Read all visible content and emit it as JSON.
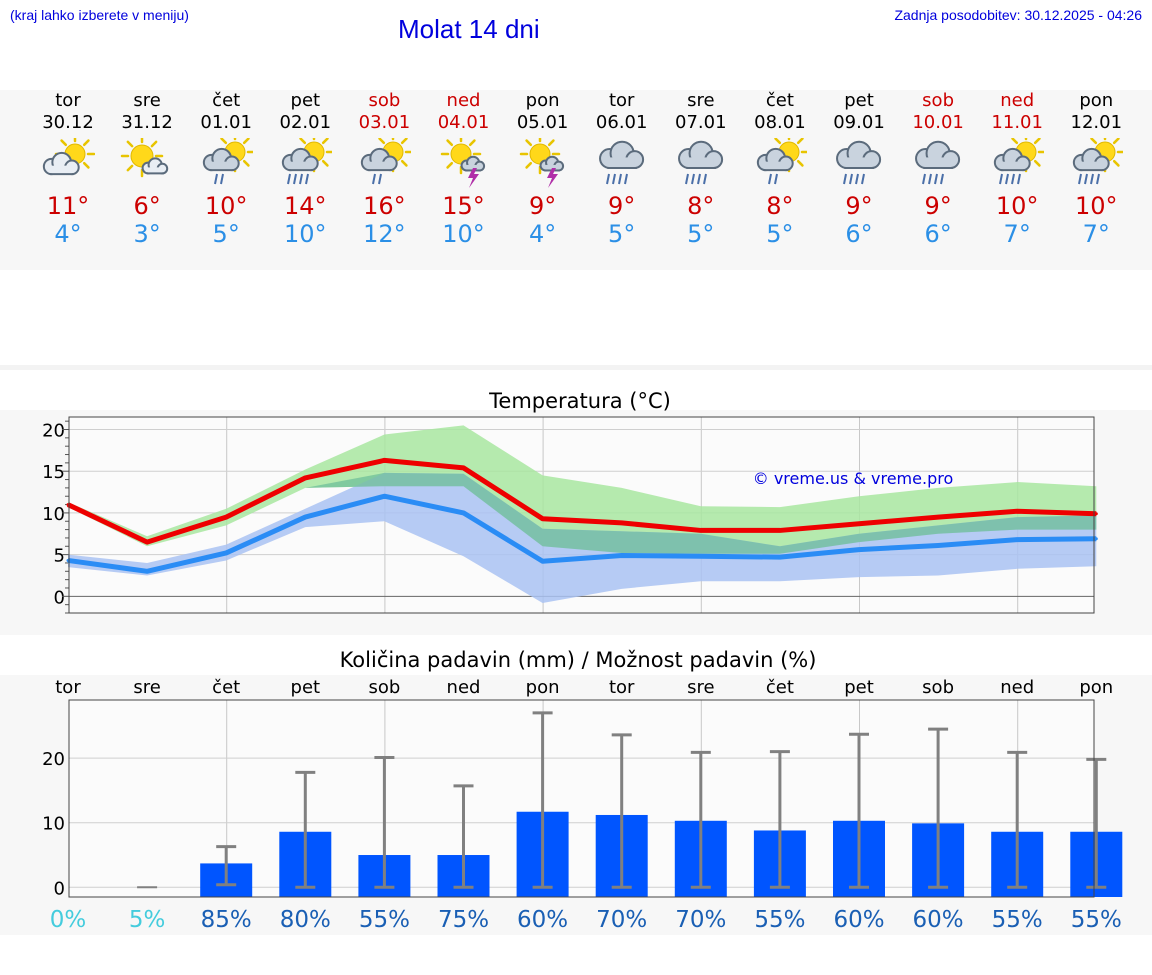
{
  "header": {
    "hint": "(kraj lahko izberete v meniju)",
    "title": "Molat 14 dni",
    "updated": "Zadnja posodobitev: 30.12.2025 - 04:26"
  },
  "days": [
    {
      "name": "tor",
      "date": "30.12",
      "weekend": false,
      "icon": "partly-cloudy-icon",
      "max": "11°",
      "min": "4°"
    },
    {
      "name": "sre",
      "date": "31.12",
      "weekend": false,
      "icon": "mostly-sunny-icon",
      "max": "6°",
      "min": "3°"
    },
    {
      "name": "čet",
      "date": "01.01",
      "weekend": false,
      "icon": "sun-cloud-rain-icon",
      "max": "10°",
      "min": "5°"
    },
    {
      "name": "pet",
      "date": "02.01",
      "weekend": false,
      "icon": "sun-cloud-heavy-rain-icon",
      "max": "14°",
      "min": "10°"
    },
    {
      "name": "sob",
      "date": "03.01",
      "weekend": true,
      "icon": "sun-cloud-rain-icon",
      "max": "16°",
      "min": "12°"
    },
    {
      "name": "ned",
      "date": "04.01",
      "weekend": true,
      "icon": "sun-thunder-icon",
      "max": "15°",
      "min": "10°"
    },
    {
      "name": "pon",
      "date": "05.01",
      "weekend": false,
      "icon": "sun-thunder-icon",
      "max": "9°",
      "min": "4°"
    },
    {
      "name": "tor",
      "date": "06.01",
      "weekend": false,
      "icon": "cloud-heavy-rain-icon",
      "max": "9°",
      "min": "5°"
    },
    {
      "name": "sre",
      "date": "07.01",
      "weekend": false,
      "icon": "cloud-heavy-rain-icon",
      "max": "8°",
      "min": "5°"
    },
    {
      "name": "čet",
      "date": "08.01",
      "weekend": false,
      "icon": "sun-cloud-rain-icon",
      "max": "8°",
      "min": "5°"
    },
    {
      "name": "pet",
      "date": "09.01",
      "weekend": false,
      "icon": "cloud-heavy-rain-icon",
      "max": "9°",
      "min": "6°"
    },
    {
      "name": "sob",
      "date": "10.01",
      "weekend": true,
      "icon": "cloud-heavy-rain-icon",
      "max": "9°",
      "min": "6°"
    },
    {
      "name": "ned",
      "date": "11.01",
      "weekend": true,
      "icon": "sun-cloud-heavy-rain-icon",
      "max": "10°",
      "min": "7°"
    },
    {
      "name": "pon",
      "date": "12.01",
      "weekend": false,
      "icon": "sun-cloud-heavy-rain-icon",
      "max": "10°",
      "min": "7°"
    }
  ],
  "colors": {
    "title": "#0000dd",
    "tmax": "#cc0000",
    "tmin": "#2b8fe6",
    "max_line": "#ee0000",
    "min_line": "#2a8cf5",
    "max_band": "#a8e6a0",
    "min_band": "#a9c2f2",
    "bar": "#0055ff",
    "errorbar": "#808080",
    "pct_low": "#44ccdd",
    "pct": "#1a5fb4"
  },
  "chart_data": [
    {
      "type": "line",
      "title": "Temperatura (°C)",
      "watermark": "© vreme.us & vreme.pro",
      "ylim": [
        -2,
        21.5
      ],
      "yticks": [
        0,
        5,
        10,
        15,
        20
      ],
      "x": [
        "30.12",
        "31.12",
        "01.01",
        "02.01",
        "03.01",
        "04.01",
        "05.01",
        "06.01",
        "07.01",
        "08.01",
        "09.01",
        "10.01",
        "11.01",
        "12.01"
      ],
      "series": [
        {
          "name": "max",
          "values": [
            11,
            6.5,
            9.5,
            14.2,
            16.3,
            15.4,
            9.3,
            8.8,
            7.9,
            7.9,
            8.7,
            9.5,
            10.2,
            9.9
          ]
        },
        {
          "name": "min",
          "values": [
            4.3,
            3,
            5.2,
            9.5,
            12,
            10,
            4.2,
            4.9,
            4.8,
            4.7,
            5.6,
            6.1,
            6.8,
            6.9
          ]
        },
        {
          "name": "max_range_low",
          "values": [
            10.7,
            6,
            8.5,
            13,
            13.2,
            13.2,
            6,
            5.2,
            5.1,
            5.1,
            6.5,
            7.5,
            8,
            8
          ]
        },
        {
          "name": "max_range_high",
          "values": [
            11.3,
            7.2,
            10.5,
            15.2,
            19.4,
            20.5,
            14.5,
            13,
            10.8,
            10.7,
            12,
            13,
            13.7,
            13.2
          ]
        },
        {
          "name": "min_range_low",
          "values": [
            3.5,
            2.5,
            4.3,
            8.3,
            9,
            4.8,
            -0.8,
            0.9,
            1.8,
            1.8,
            2.3,
            2.5,
            3.3,
            3.6
          ]
        },
        {
          "name": "min_range_high",
          "values": [
            5,
            4,
            6.2,
            10.5,
            14.8,
            14.7,
            8.1,
            7.8,
            7.5,
            6,
            7.5,
            8.5,
            9.5,
            9.7
          ]
        }
      ]
    },
    {
      "type": "bar",
      "title": "Količina padavin (mm) / Možnost padavin (%)",
      "ylim": [
        -1.5,
        29
      ],
      "yticks": [
        0,
        10,
        20
      ],
      "categories": [
        "tor",
        "sre",
        "čet",
        "pet",
        "sob",
        "ned",
        "pon",
        "tor",
        "sre",
        "čet",
        "pet",
        "sob",
        "ned",
        "pon"
      ],
      "values": [
        0,
        0,
        3.7,
        8.6,
        5,
        5,
        11.7,
        11.2,
        10.3,
        8.8,
        10.3,
        9.9,
        8.6,
        8.6
      ],
      "error_low": [
        0,
        0,
        0.4,
        0,
        0,
        0,
        0,
        0,
        0,
        0,
        0,
        0,
        0,
        0
      ],
      "error_high": [
        0,
        0,
        6.3,
        17.8,
        20.1,
        15.7,
        27,
        23.6,
        20.9,
        21,
        23.7,
        24.5,
        20.9,
        19.8
      ],
      "chance": [
        "0%",
        "5%",
        "85%",
        "80%",
        "55%",
        "75%",
        "60%",
        "70%",
        "70%",
        "55%",
        "60%",
        "60%",
        "55%",
        "55%"
      ]
    }
  ]
}
